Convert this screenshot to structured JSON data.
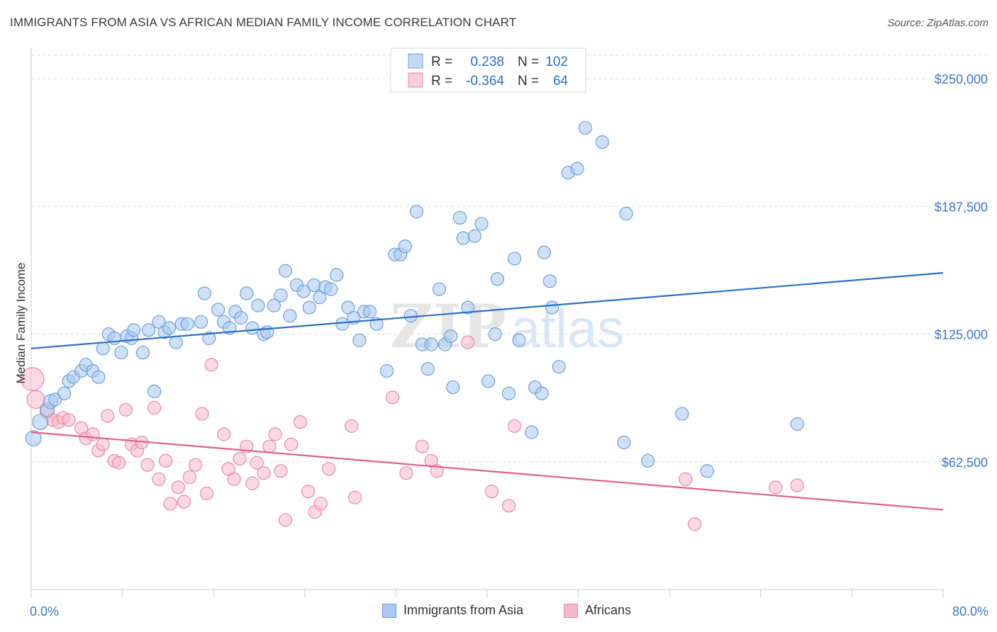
{
  "header": {
    "title": "IMMIGRANTS FROM ASIA VS AFRICAN MEDIAN FAMILY INCOME CORRELATION CHART",
    "source": "Source: ZipAtlas.com"
  },
  "legend_box": {
    "rows": [
      {
        "r_label": "R =",
        "r_value": "0.238",
        "n_label": "N =",
        "n_value": "102"
      },
      {
        "r_label": "R =",
        "r_value": "-0.364",
        "n_label": "N =",
        "n_value": "64"
      }
    ]
  },
  "watermark": {
    "zip": "ZIP",
    "atlas": "atlas"
  },
  "colors": {
    "blue_fill": "#a8c8f0",
    "blue_stroke": "#6f9fd8",
    "blue_line": "#2b6fc9",
    "pink_fill": "#f7b8cb",
    "pink_stroke": "#e88aa8",
    "pink_line": "#e0608c",
    "axis_label_blue": "#3b78c9",
    "grid": "#dddddd"
  },
  "chart_data": {
    "type": "scatter",
    "title": "IMMIGRANTS FROM ASIA VS AFRICAN MEDIAN FAMILY INCOME CORRELATION CHART",
    "xlabel": "",
    "ylabel": "Median Family Income",
    "xlim": [
      0,
      80
    ],
    "ylim": [
      0,
      265000
    ],
    "x_tick_labels": [
      "0.0%",
      "80.0%"
    ],
    "y_ticks": [
      62500,
      125000,
      187500,
      250000
    ],
    "y_tick_labels": [
      "$62,500",
      "$125,000",
      "$187,500",
      "$250,000"
    ],
    "grid": true,
    "legend_position": "top-center",
    "series": [
      {
        "name": "Immigrants from Asia",
        "r": 0.238,
        "n": 102,
        "trend": [
          [
            0,
            118000
          ],
          [
            80,
            155000
          ]
        ],
        "points": [
          [
            0.2,
            74000,
            12
          ],
          [
            0.8,
            82000,
            12
          ],
          [
            1.4,
            88000,
            11
          ],
          [
            1.7,
            92000,
            11
          ],
          [
            2.1,
            93000,
            10
          ],
          [
            2.9,
            96000,
            10
          ],
          [
            3.3,
            102000,
            10
          ],
          [
            3.7,
            104000,
            10
          ],
          [
            4.4,
            107000,
            10
          ],
          [
            4.8,
            110000,
            10
          ],
          [
            5.4,
            107000,
            10
          ],
          [
            5.9,
            104000,
            10
          ],
          [
            6.3,
            118000,
            10
          ],
          [
            6.8,
            125000,
            10
          ],
          [
            7.3,
            123000,
            10
          ],
          [
            7.9,
            116000,
            10
          ],
          [
            8.4,
            124000,
            10
          ],
          [
            8.8,
            123000,
            10
          ],
          [
            9.0,
            127000,
            10
          ],
          [
            9.8,
            116000,
            10
          ],
          [
            10.3,
            127000,
            10
          ],
          [
            10.8,
            97000,
            10
          ],
          [
            11.2,
            131000,
            10
          ],
          [
            11.7,
            126000,
            10
          ],
          [
            12.1,
            128000,
            10
          ],
          [
            12.7,
            121000,
            10
          ],
          [
            13.2,
            130000,
            10
          ],
          [
            13.7,
            130000,
            10
          ],
          [
            14.9,
            131000,
            10
          ],
          [
            15.2,
            145000,
            10
          ],
          [
            15.6,
            123000,
            10
          ],
          [
            16.4,
            137000,
            10
          ],
          [
            16.9,
            131000,
            10
          ],
          [
            17.4,
            128000,
            10
          ],
          [
            17.9,
            136000,
            10
          ],
          [
            18.4,
            133000,
            10
          ],
          [
            18.9,
            145000,
            10
          ],
          [
            19.4,
            128000,
            10
          ],
          [
            19.9,
            139000,
            10
          ],
          [
            20.4,
            125000,
            10
          ],
          [
            20.7,
            126000,
            10
          ],
          [
            21.3,
            139000,
            10
          ],
          [
            21.9,
            144000,
            10
          ],
          [
            22.3,
            156000,
            10
          ],
          [
            22.7,
            134000,
            10
          ],
          [
            23.3,
            149000,
            10
          ],
          [
            23.9,
            146000,
            10
          ],
          [
            24.4,
            138000,
            10
          ],
          [
            24.8,
            149000,
            10
          ],
          [
            25.3,
            143000,
            10
          ],
          [
            25.8,
            148000,
            10
          ],
          [
            26.3,
            147000,
            10
          ],
          [
            26.8,
            154000,
            10
          ],
          [
            27.3,
            130000,
            10
          ],
          [
            27.8,
            138000,
            10
          ],
          [
            28.3,
            133000,
            10
          ],
          [
            28.8,
            122000,
            10
          ],
          [
            29.2,
            136000,
            10
          ],
          [
            29.7,
            136000,
            10
          ],
          [
            30.3,
            130000,
            10
          ],
          [
            31.2,
            107000,
            10
          ],
          [
            31.9,
            164000,
            10
          ],
          [
            32.4,
            164000,
            10
          ],
          [
            32.8,
            168000,
            10
          ],
          [
            33.3,
            134000,
            10
          ],
          [
            33.8,
            185000,
            10
          ],
          [
            34.3,
            120000,
            10
          ],
          [
            34.8,
            108000,
            10
          ],
          [
            35.1,
            120000,
            10
          ],
          [
            35.8,
            147000,
            10
          ],
          [
            36.3,
            120000,
            10
          ],
          [
            36.8,
            124000,
            10
          ],
          [
            37.0,
            99000,
            10
          ],
          [
            37.6,
            182000,
            10
          ],
          [
            37.9,
            172000,
            10
          ],
          [
            38.3,
            138000,
            10
          ],
          [
            38.9,
            173000,
            10
          ],
          [
            39.5,
            179000,
            10
          ],
          [
            40.1,
            102000,
            10
          ],
          [
            40.7,
            125000,
            10
          ],
          [
            40.9,
            152000,
            10
          ],
          [
            41.9,
            96000,
            10
          ],
          [
            42.4,
            162000,
            10
          ],
          [
            42.8,
            122000,
            10
          ],
          [
            43.9,
            77000,
            10
          ],
          [
            44.2,
            99000,
            10
          ],
          [
            44.8,
            96000,
            10
          ],
          [
            45.0,
            165000,
            10
          ],
          [
            45.5,
            151000,
            10
          ],
          [
            45.7,
            138000,
            10
          ],
          [
            46.3,
            109000,
            10
          ],
          [
            47.1,
            204000,
            10
          ],
          [
            47.9,
            206000,
            10
          ],
          [
            48.6,
            226000,
            10
          ],
          [
            50.1,
            219000,
            10
          ],
          [
            52.0,
            72000,
            10
          ],
          [
            52.2,
            184000,
            10
          ],
          [
            54.1,
            63000,
            10
          ],
          [
            57.1,
            86000,
            10
          ],
          [
            59.3,
            58000,
            10
          ],
          [
            67.2,
            81000,
            10
          ]
        ]
      },
      {
        "name": "Africans",
        "r": -0.364,
        "n": 64,
        "trend": [
          [
            0,
            77000
          ],
          [
            80,
            39000
          ]
        ],
        "points": [
          [
            0.1,
            103000,
            18
          ],
          [
            0.4,
            93000,
            14
          ],
          [
            1.4,
            87000,
            11
          ],
          [
            1.9,
            83000,
            10
          ],
          [
            2.4,
            82000,
            10
          ],
          [
            2.8,
            84000,
            10
          ],
          [
            3.3,
            83000,
            10
          ],
          [
            4.4,
            79000,
            10
          ],
          [
            4.8,
            74000,
            10
          ],
          [
            5.4,
            76000,
            10
          ],
          [
            5.9,
            68000,
            10
          ],
          [
            6.3,
            71000,
            10
          ],
          [
            6.7,
            85000,
            10
          ],
          [
            7.3,
            63000,
            10
          ],
          [
            7.7,
            62000,
            10
          ],
          [
            8.3,
            88000,
            10
          ],
          [
            8.8,
            71000,
            10
          ],
          [
            9.3,
            68000,
            10
          ],
          [
            9.7,
            72000,
            10
          ],
          [
            10.2,
            61000,
            10
          ],
          [
            10.8,
            89000,
            10
          ],
          [
            11.2,
            54000,
            10
          ],
          [
            11.8,
            63000,
            10
          ],
          [
            12.2,
            42000,
            10
          ],
          [
            12.9,
            50000,
            10
          ],
          [
            13.4,
            43000,
            10
          ],
          [
            13.9,
            55000,
            10
          ],
          [
            14.4,
            61000,
            10
          ],
          [
            15.0,
            86000,
            10
          ],
          [
            15.4,
            47000,
            10
          ],
          [
            15.8,
            110000,
            10
          ],
          [
            16.9,
            76000,
            10
          ],
          [
            17.3,
            59000,
            10
          ],
          [
            17.8,
            54000,
            10
          ],
          [
            18.3,
            64000,
            10
          ],
          [
            18.9,
            70000,
            10
          ],
          [
            19.4,
            52000,
            10
          ],
          [
            19.8,
            62000,
            10
          ],
          [
            20.4,
            57000,
            10
          ],
          [
            20.9,
            70000,
            10
          ],
          [
            21.4,
            76000,
            10
          ],
          [
            21.9,
            58000,
            10
          ],
          [
            22.3,
            34000,
            10
          ],
          [
            22.8,
            71000,
            10
          ],
          [
            23.6,
            82000,
            10
          ],
          [
            24.3,
            48000,
            10
          ],
          [
            24.9,
            38000,
            10
          ],
          [
            25.4,
            42000,
            10
          ],
          [
            26.1,
            59000,
            10
          ],
          [
            28.1,
            80000,
            10
          ],
          [
            28.4,
            45000,
            10
          ],
          [
            31.7,
            94000,
            10
          ],
          [
            32.9,
            57000,
            10
          ],
          [
            34.3,
            70000,
            10
          ],
          [
            35.1,
            63000,
            10
          ],
          [
            35.6,
            58000,
            10
          ],
          [
            38.3,
            121000,
            10
          ],
          [
            40.4,
            48000,
            10
          ],
          [
            41.9,
            41000,
            10
          ],
          [
            42.4,
            80000,
            10
          ],
          [
            57.4,
            54000,
            10
          ],
          [
            58.2,
            32000,
            10
          ],
          [
            65.3,
            50000,
            10
          ],
          [
            67.2,
            51000,
            10
          ]
        ]
      }
    ]
  },
  "bottom_legend": {
    "items": [
      {
        "label": "Immigrants from Asia"
      },
      {
        "label": "Africans"
      }
    ]
  }
}
